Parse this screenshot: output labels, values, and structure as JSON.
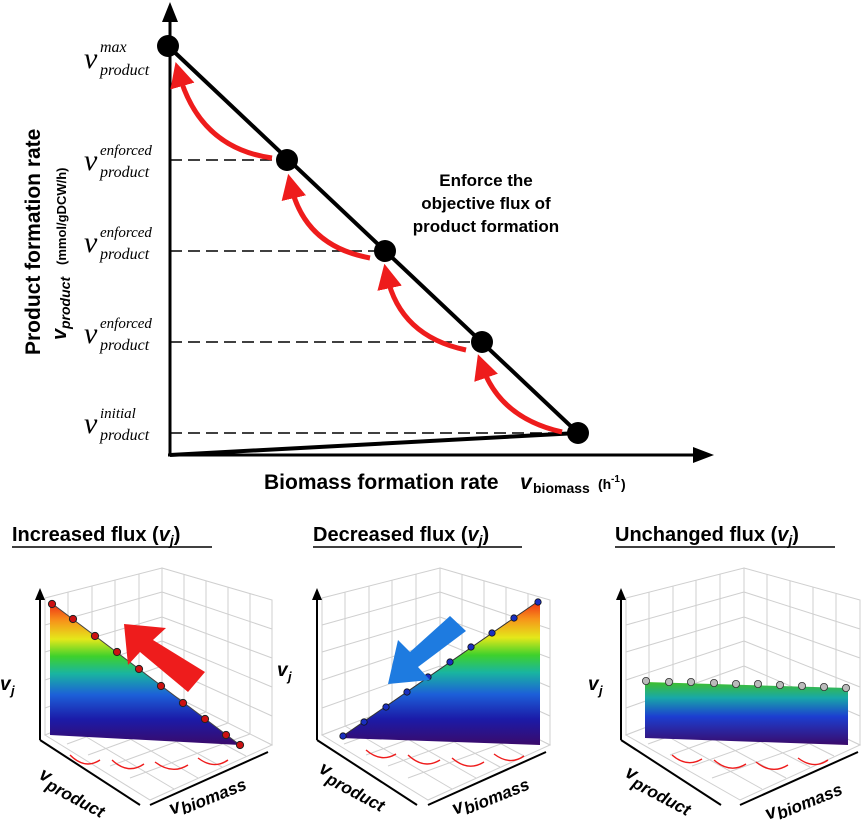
{
  "top_plot": {
    "y_axis_title": "Product formation rate",
    "y_axis_sym_main": "v",
    "y_axis_sym_sub": "product",
    "y_axis_units": "(mmol/gDCW/h)",
    "x_axis_title": "Biomass formation rate",
    "x_axis_sym_main": "v",
    "x_axis_sym_sub": "biomass",
    "x_axis_units_main": "(h",
    "x_axis_units_sup": "-1",
    "x_axis_units_close": ")",
    "annotation": [
      "Enforce the",
      "objective flux of",
      "product formation"
    ],
    "levels": [
      {
        "sym": "v",
        "sup": "max",
        "sub": "product"
      },
      {
        "sym": "v",
        "sup": "enforced",
        "sub": "product"
      },
      {
        "sym": "v",
        "sup": "enforced",
        "sub": "product"
      },
      {
        "sym": "v",
        "sup": "enforced",
        "sub": "product"
      },
      {
        "sym": "v",
        "sup": "initial",
        "sub": "product"
      }
    ],
    "colors": {
      "arrow": "#ee1c1c",
      "line": "#000000"
    }
  },
  "panels": [
    {
      "title_main": "Increased flux (",
      "title_sym": "v",
      "title_sub": "j",
      "title_close": ")",
      "z_label_main": "v",
      "z_label_sub": "j",
      "x_label_main": "v",
      "x_label_sub": "product",
      "y_label_main": "v",
      "y_label_sub": "biomass",
      "arrow_color": "#ee1c1c",
      "dot_color": "#cc1111"
    },
    {
      "title_main": "Decreased flux (",
      "title_sym": "v",
      "title_sub": "j",
      "title_close": ")",
      "z_label_main": "v",
      "z_label_sub": "j",
      "x_label_main": "v",
      "x_label_sub": "product",
      "y_label_main": "v",
      "y_label_sub": "biomass",
      "arrow_color": "#1e7be0",
      "dot_color": "#1a2fc0"
    },
    {
      "title_main": "Unchanged flux (",
      "title_sym": "v",
      "title_sub": "j",
      "title_close": ")",
      "z_label_main": "v",
      "z_label_sub": "j",
      "x_label_main": "v",
      "x_label_sub": "product",
      "y_label_main": "v",
      "y_label_sub": "biomass",
      "arrow_color": "",
      "dot_color": "#bbbbbb"
    }
  ]
}
